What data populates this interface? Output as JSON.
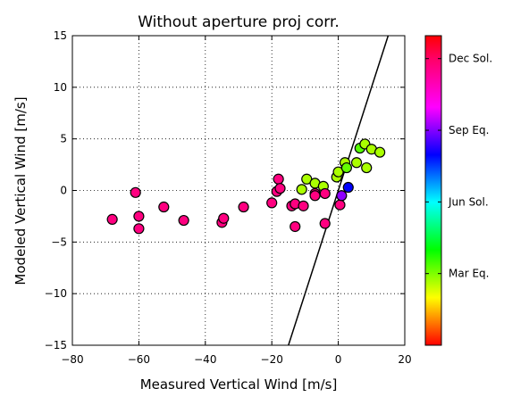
{
  "chart_data": {
    "type": "scatter",
    "title": "Without aperture proj corr.",
    "xlabel": "Measured Vertical Wind [m/s]",
    "ylabel": "Modeled Vertical Wind [m/s]",
    "xlim": [
      -80,
      20
    ],
    "ylim": [
      -15,
      15
    ],
    "xticks": [
      -80,
      -60,
      -40,
      -20,
      0,
      20
    ],
    "yticks": [
      -15,
      -10,
      -5,
      0,
      5,
      10,
      15
    ],
    "xtick_labels": [
      "−80",
      "−60",
      "−40",
      "−20",
      "0",
      "20"
    ],
    "ytick_labels": [
      "−15",
      "−10",
      "−5",
      "0",
      "5",
      "10",
      "15"
    ],
    "grid": true,
    "reference_line": {
      "x": [
        -15,
        15
      ],
      "y": [
        -15,
        15
      ]
    },
    "colorbar": {
      "tick_labels": [
        "Mar Eq.",
        "Jun Sol.",
        "Sep Eq.",
        "Dec Sol."
      ],
      "tick_values": [
        0.25,
        0.5,
        0.75,
        1.0
      ],
      "colormap": "hsv",
      "range": [
        0,
        1.08
      ]
    },
    "points": [
      {
        "x": -68,
        "y": -2.8,
        "c": 0.99
      },
      {
        "x": -61,
        "y": -0.2,
        "c": 0.99
      },
      {
        "x": -60,
        "y": -2.5,
        "c": 0.99
      },
      {
        "x": -60,
        "y": -3.7,
        "c": 0.99
      },
      {
        "x": -52.5,
        "y": -1.6,
        "c": 0.99
      },
      {
        "x": -46.5,
        "y": -2.9,
        "c": 0.99
      },
      {
        "x": -35,
        "y": -3.1,
        "c": 0.99
      },
      {
        "x": -34.5,
        "y": -2.7,
        "c": 0.99
      },
      {
        "x": -28.5,
        "y": -1.6,
        "c": 0.99
      },
      {
        "x": -20,
        "y": -1.2,
        "c": 0.99
      },
      {
        "x": -18.5,
        "y": -0.1,
        "c": 0.99
      },
      {
        "x": -18,
        "y": 1.1,
        "c": 0.99
      },
      {
        "x": -17.5,
        "y": 0.2,
        "c": 0.99
      },
      {
        "x": -14,
        "y": -1.5,
        "c": 0.99
      },
      {
        "x": -13,
        "y": -1.3,
        "c": 0.99
      },
      {
        "x": -13,
        "y": -3.5,
        "c": 0.99
      },
      {
        "x": -10.5,
        "y": -1.5,
        "c": 0.99
      },
      {
        "x": -11,
        "y": 0.1,
        "c": 0.24
      },
      {
        "x": -9.5,
        "y": 1.1,
        "c": 0.24
      },
      {
        "x": -7,
        "y": -0.3,
        "c": 0.99
      },
      {
        "x": -7,
        "y": -0.5,
        "c": 0.99
      },
      {
        "x": -7,
        "y": 0.7,
        "c": 0.24
      },
      {
        "x": -4.5,
        "y": 0.4,
        "c": 0.24
      },
      {
        "x": -4,
        "y": -0.3,
        "c": 0.99
      },
      {
        "x": -4,
        "y": -3.2,
        "c": 0.99
      },
      {
        "x": -0.5,
        "y": 1.3,
        "c": 0.24
      },
      {
        "x": 0,
        "y": 1.8,
        "c": 0.24
      },
      {
        "x": 0.5,
        "y": -1.4,
        "c": 0.99
      },
      {
        "x": 1,
        "y": -0.5,
        "c": 0.82
      },
      {
        "x": 2,
        "y": 2.7,
        "c": 0.24
      },
      {
        "x": 2.5,
        "y": 2.2,
        "c": 0.29
      },
      {
        "x": 3,
        "y": 0.3,
        "c": 0.72
      },
      {
        "x": 5.5,
        "y": 2.7,
        "c": 0.24
      },
      {
        "x": 6.5,
        "y": 4.1,
        "c": 0.3
      },
      {
        "x": 8,
        "y": 4.5,
        "c": 0.24
      },
      {
        "x": 8.5,
        "y": 2.2,
        "c": 0.24
      },
      {
        "x": 10,
        "y": 4.0,
        "c": 0.24
      },
      {
        "x": 12.5,
        "y": 3.7,
        "c": 0.24
      }
    ]
  }
}
